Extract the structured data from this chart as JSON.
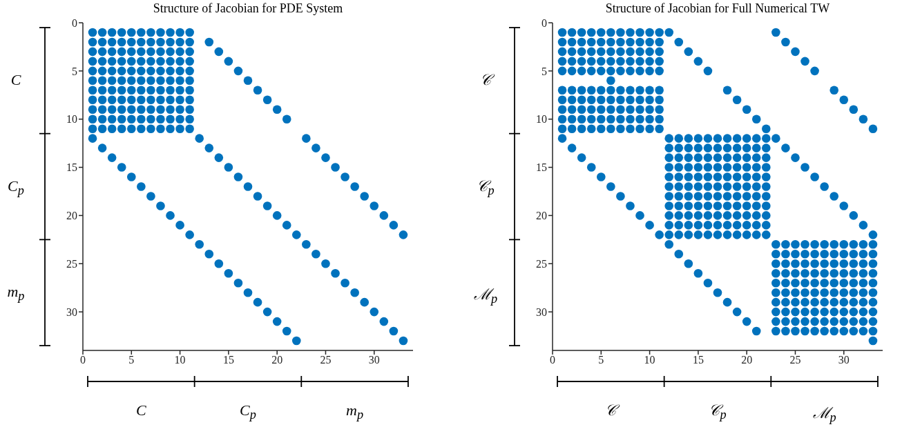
{
  "chart_data": [
    {
      "type": "scatter",
      "title": "Structure of Jacobian for PDE System",
      "xlim": [
        0,
        34
      ],
      "ylim": [
        34,
        0
      ],
      "xticks": [
        0,
        5,
        10,
        15,
        20,
        25,
        30
      ],
      "yticks": [
        0,
        5,
        10,
        15,
        20,
        25,
        30
      ],
      "marker": "circle",
      "grid": false,
      "legend": false,
      "annotations": [
        "C",
        "C$_{p}$",
        "m$_{p}$",
        "C",
        "C$_{p}$",
        "m$_{p}$"
      ],
      "series": [
        {
          "color": "#0072bd",
          "x": [
            1,
            2,
            3,
            4,
            5,
            6,
            7,
            8,
            9,
            10,
            11,
            1,
            2,
            3,
            4,
            5,
            6,
            7,
            8,
            9,
            10,
            11,
            1,
            2,
            3,
            4,
            5,
            6,
            7,
            8,
            9,
            10,
            11,
            1,
            2,
            3,
            4,
            5,
            6,
            7,
            8,
            9,
            10,
            11,
            1,
            2,
            3,
            4,
            5,
            6,
            7,
            8,
            9,
            10,
            11,
            1,
            2,
            3,
            4,
            5,
            6,
            7,
            8,
            9,
            10,
            11,
            1,
            2,
            3,
            4,
            5,
            6,
            7,
            8,
            9,
            10,
            11,
            1,
            2,
            3,
            4,
            5,
            6,
            7,
            8,
            9,
            10,
            11,
            1,
            2,
            3,
            4,
            5,
            6,
            7,
            8,
            9,
            10,
            11,
            1,
            2,
            3,
            4,
            5,
            6,
            7,
            8,
            9,
            10,
            11,
            1,
            2,
            3,
            4,
            5,
            6,
            7,
            8,
            9,
            10,
            11
          ],
          "values": [
            1,
            1,
            1,
            1,
            1,
            1,
            1,
            1,
            1,
            1,
            1,
            2,
            2,
            2,
            2,
            2,
            2,
            2,
            2,
            2,
            2,
            2,
            3,
            3,
            3,
            3,
            3,
            3,
            3,
            3,
            3,
            3,
            3,
            4,
            4,
            4,
            4,
            4,
            4,
            4,
            4,
            4,
            4,
            4,
            5,
            5,
            5,
            5,
            5,
            5,
            5,
            5,
            5,
            5,
            5,
            6,
            6,
            6,
            6,
            6,
            6,
            6,
            6,
            6,
            6,
            6,
            7,
            7,
            7,
            7,
            7,
            7,
            7,
            7,
            7,
            7,
            7,
            8,
            8,
            8,
            8,
            8,
            8,
            8,
            8,
            8,
            8,
            8,
            9,
            9,
            9,
            9,
            9,
            9,
            9,
            9,
            9,
            9,
            9,
            10,
            10,
            10,
            10,
            10,
            10,
            10,
            10,
            10,
            10,
            10,
            11,
            11,
            11,
            11,
            11,
            11,
            11,
            11,
            11,
            11,
            11
          ]
        },
        {
          "color": "#0072bd",
          "x": [
            1,
            2,
            3,
            4,
            5,
            6,
            7,
            8,
            9,
            10,
            11,
            12,
            13,
            14,
            15,
            16,
            17,
            18,
            19,
            20,
            21,
            22
          ],
          "values": [
            12,
            13,
            14,
            15,
            16,
            17,
            18,
            19,
            20,
            21,
            22,
            23,
            24,
            25,
            26,
            27,
            28,
            29,
            30,
            31,
            32,
            33
          ]
        },
        {
          "color": "#0072bd",
          "x": [
            12,
            13,
            14,
            15,
            16,
            17,
            18,
            19,
            20,
            21,
            22,
            23,
            24,
            25,
            26,
            27,
            28,
            29,
            30,
            31,
            32,
            33
          ],
          "values": [
            12,
            13,
            14,
            15,
            16,
            17,
            18,
            19,
            20,
            21,
            22,
            23,
            24,
            25,
            26,
            27,
            28,
            29,
            30,
            31,
            32,
            33
          ]
        },
        {
          "color": "#0072bd",
          "x": [
            13,
            14,
            15,
            16,
            17,
            18,
            19,
            20,
            21,
            23,
            24,
            25,
            26,
            27,
            28,
            29,
            30,
            31,
            32,
            33
          ],
          "values": [
            2,
            3,
            4,
            5,
            6,
            7,
            8,
            9,
            10,
            12,
            13,
            14,
            15,
            16,
            17,
            18,
            19,
            20,
            21,
            22
          ]
        }
      ]
    },
    {
      "type": "scatter",
      "title": "Structure of Jacobian for Full Numerical TW",
      "xlim": [
        0,
        34
      ],
      "ylim": [
        34,
        0
      ],
      "xticks": [
        0,
        5,
        10,
        15,
        20,
        25,
        30
      ],
      "yticks": [
        0,
        5,
        10,
        15,
        20,
        25,
        30
      ],
      "marker": "circle",
      "grid": false,
      "legend": false,
      "annotations": [
        "𝒞",
        "𝒞$_{p}$",
        "ℳ$_{p}$",
        "𝒞",
        "𝒞$_{p}$",
        "ℳ$_{p}$"
      ],
      "series": [
        {
          "color": "#0072bd",
          "x": [
            1,
            2,
            3,
            4,
            5,
            6,
            7,
            8,
            9,
            10,
            11,
            1,
            2,
            3,
            4,
            5,
            6,
            7,
            8,
            9,
            10,
            11,
            1,
            2,
            3,
            4,
            5,
            6,
            7,
            8,
            9,
            10,
            11,
            1,
            2,
            3,
            4,
            5,
            6,
            7,
            8,
            9,
            10,
            11,
            1,
            2,
            3,
            4,
            5,
            6,
            7,
            8,
            9,
            10,
            11,
            1,
            2,
            3,
            4,
            5,
            6,
            7,
            8,
            9,
            10,
            11,
            1,
            2,
            3,
            4,
            5,
            6,
            7,
            8,
            9,
            10,
            11,
            1,
            2,
            3,
            4,
            5,
            6,
            7,
            8,
            9,
            10,
            11,
            1,
            2,
            3,
            4,
            5,
            6,
            7,
            8,
            9,
            10,
            11,
            1,
            2,
            3,
            4,
            5,
            6,
            7,
            8,
            9,
            10,
            11
          ],
          "values": [
            1,
            1,
            1,
            1,
            1,
            1,
            1,
            1,
            1,
            1,
            1,
            2,
            2,
            2,
            2,
            2,
            2,
            2,
            2,
            2,
            2,
            2,
            3,
            3,
            3,
            3,
            3,
            3,
            3,
            3,
            3,
            3,
            3,
            4,
            4,
            4,
            4,
            4,
            4,
            4,
            4,
            4,
            4,
            4,
            5,
            5,
            5,
            5,
            5,
            5,
            5,
            5,
            5,
            5,
            5,
            7,
            7,
            7,
            7,
            7,
            7,
            7,
            7,
            7,
            7,
            7,
            8,
            8,
            8,
            8,
            8,
            8,
            8,
            8,
            8,
            8,
            8,
            9,
            9,
            9,
            9,
            9,
            9,
            9,
            9,
            9,
            9,
            9,
            10,
            10,
            10,
            10,
            10,
            10,
            10,
            10,
            10,
            10,
            10,
            11,
            11,
            11,
            11,
            11,
            11,
            11,
            11,
            11,
            11,
            11
          ]
        },
        {
          "color": "#0072bd",
          "x": [
            12,
            13,
            14,
            15,
            16,
            17,
            18,
            19,
            20,
            21,
            22,
            12,
            13,
            14,
            15,
            16,
            17,
            18,
            19,
            20,
            21,
            22,
            12,
            13,
            14,
            15,
            16,
            17,
            18,
            19,
            20,
            21,
            22,
            12,
            13,
            14,
            15,
            16,
            17,
            18,
            19,
            20,
            21,
            22,
            12,
            13,
            14,
            15,
            16,
            17,
            18,
            19,
            20,
            21,
            22,
            12,
            13,
            14,
            15,
            16,
            17,
            18,
            19,
            20,
            21,
            22,
            12,
            13,
            14,
            15,
            16,
            17,
            18,
            19,
            20,
            21,
            22,
            12,
            13,
            14,
            15,
            16,
            17,
            18,
            19,
            20,
            21,
            22,
            12,
            13,
            14,
            15,
            16,
            17,
            18,
            19,
            20,
            21,
            22,
            12,
            13,
            14,
            15,
            16,
            17,
            18,
            19,
            20,
            21,
            22,
            12,
            13,
            14,
            15,
            16,
            17,
            18,
            19,
            20,
            21,
            22
          ],
          "values": [
            12,
            12,
            12,
            12,
            12,
            12,
            12,
            12,
            12,
            12,
            12,
            13,
            13,
            13,
            13,
            13,
            13,
            13,
            13,
            13,
            13,
            13,
            14,
            14,
            14,
            14,
            14,
            14,
            14,
            14,
            14,
            14,
            14,
            15,
            15,
            15,
            15,
            15,
            15,
            15,
            15,
            15,
            15,
            15,
            16,
            16,
            16,
            16,
            16,
            16,
            16,
            16,
            16,
            16,
            16,
            17,
            17,
            17,
            17,
            17,
            17,
            17,
            17,
            17,
            17,
            17,
            18,
            18,
            18,
            18,
            18,
            18,
            18,
            18,
            18,
            18,
            18,
            19,
            19,
            19,
            19,
            19,
            19,
            19,
            19,
            19,
            19,
            19,
            20,
            20,
            20,
            20,
            20,
            20,
            20,
            20,
            20,
            20,
            20,
            21,
            21,
            21,
            21,
            21,
            21,
            21,
            21,
            21,
            21,
            21,
            22,
            22,
            22,
            22,
            22,
            22,
            22,
            22,
            22,
            22,
            22
          ]
        },
        {
          "color": "#0072bd",
          "x": [
            23,
            24,
            25,
            26,
            27,
            28,
            29,
            30,
            31,
            32,
            33,
            23,
            24,
            25,
            26,
            27,
            28,
            29,
            30,
            31,
            32,
            33,
            23,
            24,
            25,
            26,
            27,
            28,
            29,
            30,
            31,
            32,
            33,
            23,
            24,
            25,
            26,
            27,
            28,
            29,
            30,
            31,
            32,
            33,
            23,
            24,
            25,
            26,
            27,
            28,
            29,
            30,
            31,
            32,
            33,
            23,
            24,
            25,
            26,
            27,
            28,
            29,
            30,
            31,
            32,
            33,
            23,
            24,
            25,
            26,
            27,
            28,
            29,
            30,
            31,
            32,
            33,
            23,
            24,
            25,
            26,
            27,
            28,
            29,
            30,
            31,
            32,
            33,
            23,
            24,
            25,
            26,
            27,
            28,
            29,
            30,
            31,
            32,
            33,
            23,
            24,
            25,
            26,
            27,
            28,
            29,
            30,
            31,
            32,
            33
          ],
          "values": [
            23,
            23,
            23,
            23,
            23,
            23,
            23,
            23,
            23,
            23,
            23,
            24,
            24,
            24,
            24,
            24,
            24,
            24,
            24,
            24,
            24,
            24,
            25,
            25,
            25,
            25,
            25,
            25,
            25,
            25,
            25,
            25,
            25,
            26,
            26,
            26,
            26,
            26,
            26,
            26,
            26,
            26,
            26,
            26,
            27,
            27,
            27,
            27,
            27,
            27,
            27,
            27,
            27,
            27,
            27,
            28,
            28,
            28,
            28,
            28,
            28,
            28,
            28,
            28,
            28,
            28,
            29,
            29,
            29,
            29,
            29,
            29,
            29,
            29,
            29,
            29,
            29,
            30,
            30,
            30,
            30,
            30,
            30,
            30,
            30,
            30,
            30,
            30,
            31,
            31,
            31,
            31,
            31,
            31,
            31,
            31,
            31,
            31,
            31,
            32,
            32,
            32,
            32,
            32,
            32,
            32,
            32,
            32,
            32,
            32
          ]
        },
        {
          "color": "#0072bd",
          "x": [
            1,
            2,
            3,
            4,
            5,
            6,
            7,
            8,
            9,
            10,
            11,
            12,
            13,
            14,
            15,
            16,
            17,
            18,
            19,
            20,
            21
          ],
          "values": [
            12,
            13,
            14,
            15,
            16,
            17,
            18,
            19,
            20,
            21,
            22,
            23,
            24,
            25,
            26,
            27,
            28,
            29,
            30,
            31,
            32
          ]
        },
        {
          "color": "#0072bd",
          "x": [
            12,
            13,
            14,
            15,
            16,
            18,
            19,
            20,
            21,
            22,
            23,
            24,
            25,
            26,
            27,
            28,
            29,
            30,
            31,
            32,
            33
          ],
          "values": [
            1,
            2,
            3,
            4,
            5,
            7,
            8,
            9,
            10,
            11,
            12,
            13,
            14,
            15,
            16,
            17,
            18,
            19,
            20,
            21,
            22
          ]
        },
        {
          "color": "#0072bd",
          "x": [
            23,
            24,
            25,
            26,
            27,
            29,
            30,
            31,
            32,
            33
          ],
          "values": [
            1,
            2,
            3,
            4,
            5,
            7,
            8,
            9,
            10,
            11
          ]
        },
        {
          "color": "#0072bd",
          "x": [
            6,
            33
          ],
          "values": [
            6,
            33
          ]
        }
      ]
    }
  ]
}
